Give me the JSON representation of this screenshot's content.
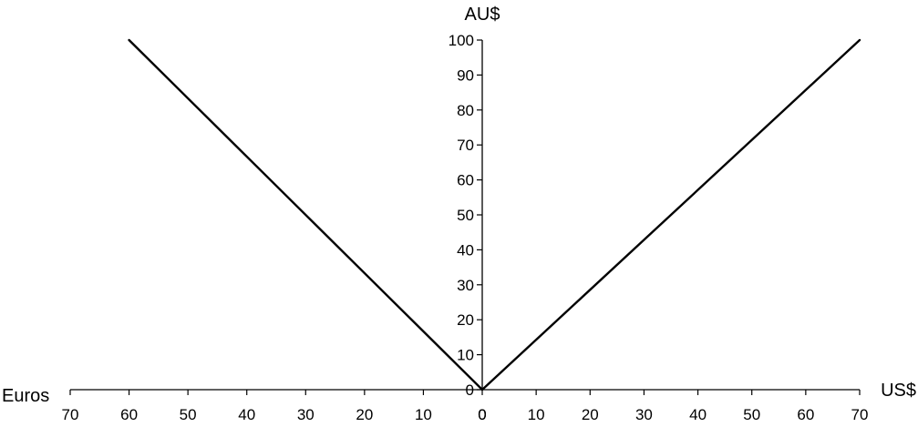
{
  "chart_data": {
    "type": "line",
    "title": "",
    "ylabel": "AU$",
    "xlabel_left": "Euros",
    "xlabel_right": "US$",
    "x_ticks_left": [
      70,
      60,
      50,
      40,
      30,
      20,
      10,
      0
    ],
    "x_ticks_right": [
      0,
      10,
      20,
      30,
      40,
      50,
      60,
      70
    ],
    "y_ticks": [
      0,
      10,
      20,
      30,
      40,
      50,
      60,
      70,
      80,
      90,
      100
    ],
    "xlim_left": [
      0,
      70
    ],
    "xlim_right": [
      0,
      70
    ],
    "ylim": [
      0,
      100
    ],
    "grid": false,
    "series": [
      {
        "axis": "left",
        "x": [
          0,
          60
        ],
        "y": [
          0,
          100
        ],
        "color": "#000000"
      },
      {
        "axis": "right",
        "x": [
          0,
          70
        ],
        "y": [
          0,
          100
        ],
        "color": "#000000"
      }
    ]
  }
}
